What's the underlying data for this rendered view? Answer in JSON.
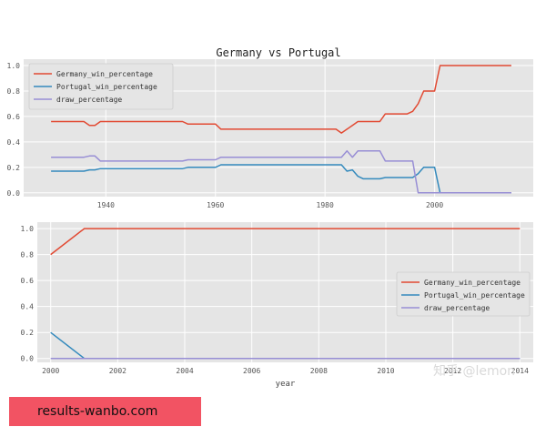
{
  "chart_data": [
    {
      "type": "line",
      "title": "Germany vs Portugal",
      "xlabel": "",
      "ylabel": "",
      "xlim": [
        1925,
        2018
      ],
      "ylim": [
        -0.03,
        1.05
      ],
      "xticks": [
        1940,
        1960,
        1980,
        2000
      ],
      "yticks": [
        0.0,
        0.2,
        0.4,
        0.6,
        0.8,
        1.0
      ],
      "ytick_labels": [
        "0.0",
        "0.2",
        "0.4",
        "0.6",
        "0.8",
        "1.0"
      ],
      "grid": true,
      "legend_position": "top-left",
      "series": [
        {
          "name": "Germany_win_percentage",
          "color": "#e24a33",
          "x": [
            1930,
            1936,
            1937,
            1938,
            1939,
            1940,
            1954,
            1955,
            1960,
            1961,
            1982,
            1983,
            1984,
            1985,
            1986,
            1990,
            1991,
            1995,
            1996,
            1997,
            1998,
            1999,
            2000,
            2001,
            2014
          ],
          "y": [
            0.56,
            0.56,
            0.53,
            0.53,
            0.56,
            0.56,
            0.56,
            0.54,
            0.54,
            0.5,
            0.5,
            0.47,
            0.5,
            0.53,
            0.56,
            0.56,
            0.62,
            0.62,
            0.64,
            0.7,
            0.8,
            0.8,
            0.8,
            1.0,
            1.0
          ]
        },
        {
          "name": "Portugal_win_percentage",
          "color": "#348abd",
          "x": [
            1930,
            1936,
            1937,
            1938,
            1939,
            1940,
            1954,
            1955,
            1960,
            1961,
            1982,
            1983,
            1984,
            1985,
            1986,
            1987,
            1990,
            1991,
            1995,
            1996,
            1997,
            1998,
            1999,
            2000,
            2001,
            2014
          ],
          "y": [
            0.17,
            0.17,
            0.18,
            0.18,
            0.19,
            0.19,
            0.19,
            0.2,
            0.2,
            0.22,
            0.22,
            0.22,
            0.17,
            0.18,
            0.13,
            0.11,
            0.11,
            0.12,
            0.12,
            0.12,
            0.15,
            0.2,
            0.2,
            0.2,
            0.0,
            0.0
          ]
        },
        {
          "name": "draw_percentage",
          "color": "#988ed5",
          "x": [
            1930,
            1936,
            1937,
            1938,
            1939,
            1940,
            1954,
            1955,
            1960,
            1961,
            1982,
            1983,
            1984,
            1985,
            1986,
            1987,
            1990,
            1991,
            1995,
            1996,
            1997,
            1998,
            1999,
            2000,
            2014
          ],
          "y": [
            0.28,
            0.28,
            0.29,
            0.29,
            0.25,
            0.25,
            0.25,
            0.26,
            0.26,
            0.28,
            0.28,
            0.28,
            0.33,
            0.28,
            0.33,
            0.33,
            0.33,
            0.25,
            0.25,
            0.25,
            0.0,
            0.0,
            0.0,
            0.0,
            0.0
          ]
        }
      ]
    },
    {
      "type": "line",
      "title": "",
      "xlabel": "year",
      "ylabel": "",
      "xlim": [
        1999.6,
        2014.4
      ],
      "ylim": [
        -0.03,
        1.05
      ],
      "xticks": [
        2000,
        2002,
        2004,
        2006,
        2008,
        2010,
        2012,
        2014
      ],
      "yticks": [
        0.0,
        0.2,
        0.4,
        0.6,
        0.8,
        1.0
      ],
      "ytick_labels": [
        "0.0",
        "0.2",
        "0.4",
        "0.6",
        "0.8",
        "1.0"
      ],
      "grid": true,
      "legend_position": "center-right",
      "series": [
        {
          "name": "Germany_win_percentage",
          "color": "#e24a33",
          "x": [
            2000,
            2001,
            2002,
            2003,
            2004,
            2005,
            2006,
            2007,
            2008,
            2009,
            2010,
            2011,
            2012,
            2013,
            2014
          ],
          "y": [
            0.8,
            1.0,
            1.0,
            1.0,
            1.0,
            1.0,
            1.0,
            1.0,
            1.0,
            1.0,
            1.0,
            1.0,
            1.0,
            1.0,
            1.0
          ]
        },
        {
          "name": "Portugal_win_percentage",
          "color": "#348abd",
          "x": [
            2000,
            2001,
            2002,
            2003,
            2004,
            2005,
            2006,
            2007,
            2008,
            2009,
            2010,
            2011,
            2012,
            2013,
            2014
          ],
          "y": [
            0.2,
            0.0,
            0.0,
            0.0,
            0.0,
            0.0,
            0.0,
            0.0,
            0.0,
            0.0,
            0.0,
            0.0,
            0.0,
            0.0,
            0.0
          ]
        },
        {
          "name": "draw_percentage",
          "color": "#988ed5",
          "x": [
            2000,
            2001,
            2002,
            2003,
            2004,
            2005,
            2006,
            2007,
            2008,
            2009,
            2010,
            2011,
            2012,
            2013,
            2014
          ],
          "y": [
            0.0,
            0.0,
            0.0,
            0.0,
            0.0,
            0.0,
            0.0,
            0.0,
            0.0,
            0.0,
            0.0,
            0.0,
            0.0,
            0.0,
            0.0
          ]
        }
      ]
    }
  ],
  "watermark": "知乎 @lemon",
  "banner": {
    "text": "results-wanbo.com",
    "color": "#f25363"
  }
}
